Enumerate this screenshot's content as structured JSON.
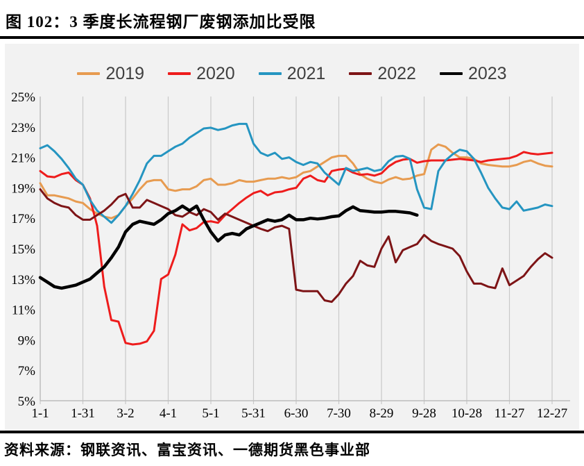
{
  "header": {
    "title": "图 102：3 季度长流程钢厂废钢添加比受限"
  },
  "footer": {
    "source": "资料来源：钢联资讯、富宝资讯、一德期货黑色事业部"
  },
  "panel": {
    "background": "#F2F2F2",
    "grid_color": "#C9C9C9",
    "axis_color": "#BDBDBD",
    "tick_label_color": "#000000",
    "legend_text_color": "#404040"
  },
  "chart_data": {
    "type": "line",
    "title": "",
    "xlabel": "",
    "ylabel": "",
    "legend_position": "top",
    "grid": "vertical-only",
    "ylim": [
      5,
      25
    ],
    "ytick_step": 2,
    "y_tick_labels": [
      "25%",
      "23%",
      "21%",
      "19%",
      "17%",
      "15%",
      "13%",
      "11%",
      "9%",
      "7%",
      "5%"
    ],
    "x_tick_labels": [
      "1-1",
      "1-31",
      "3-2",
      "4-1",
      "5-1",
      "5-31",
      "6-30",
      "7-30",
      "8-29",
      "9-28",
      "10-28",
      "11-27",
      "12-27"
    ],
    "x_interval_days": 5,
    "x_points_per_tick": 6,
    "series": [
      {
        "name": "2019",
        "color": "#E79B50",
        "width": 3,
        "values": [
          19.3,
          18.5,
          18.5,
          18.4,
          18.3,
          18.1,
          18.0,
          17.6,
          17.3,
          17.1,
          17.0,
          17.2,
          17.8,
          18.3,
          18.9,
          19.4,
          19.5,
          19.5,
          18.9,
          18.8,
          18.9,
          18.9,
          19.1,
          19.5,
          19.6,
          19.2,
          19.2,
          19.3,
          19.5,
          19.4,
          19.4,
          19.5,
          19.6,
          19.6,
          19.7,
          19.6,
          19.7,
          20.0,
          20.1,
          20.4,
          20.7,
          21.0,
          21.1,
          21.1,
          20.6,
          19.9,
          19.6,
          19.4,
          19.3,
          19.55,
          19.7,
          19.55,
          19.6,
          19.8,
          19.9,
          21.5,
          21.85,
          21.7,
          21.3,
          21.0,
          21.0,
          20.9,
          20.6,
          20.5,
          20.45,
          20.4,
          20.4,
          20.5,
          20.7,
          20.8,
          20.6,
          20.45,
          20.4
        ]
      },
      {
        "name": "2020",
        "color": "#EE1C1C",
        "width": 3,
        "values": [
          20.1,
          19.75,
          19.7,
          19.9,
          20.0,
          19.5,
          19.2,
          18.3,
          16.5,
          12.5,
          10.3,
          10.2,
          8.8,
          8.7,
          8.75,
          8.9,
          9.6,
          13.0,
          13.3,
          14.6,
          16.6,
          16.2,
          16.35,
          16.75,
          16.8,
          16.7,
          17.2,
          17.6,
          18.0,
          18.35,
          18.65,
          18.8,
          18.5,
          18.7,
          18.75,
          18.9,
          19.0,
          19.6,
          19.8,
          19.5,
          19.4,
          20.1,
          20.2,
          20.25,
          20.0,
          19.85,
          19.9,
          19.8,
          19.95,
          20.4,
          20.7,
          20.85,
          20.9,
          20.65,
          20.75,
          20.8,
          20.8,
          20.8,
          20.85,
          20.9,
          20.85,
          20.8,
          20.7,
          20.8,
          20.85,
          20.9,
          20.95,
          21.1,
          21.35,
          21.25,
          21.2,
          21.25,
          21.3
        ]
      },
      {
        "name": "2021",
        "color": "#2595C1",
        "width": 3,
        "values": [
          21.6,
          21.8,
          21.4,
          20.9,
          20.3,
          19.6,
          19.2,
          18.2,
          17.5,
          17.1,
          16.7,
          17.2,
          17.8,
          18.6,
          19.5,
          20.6,
          21.1,
          21.1,
          21.4,
          21.7,
          21.9,
          22.3,
          22.6,
          22.9,
          22.95,
          22.8,
          22.9,
          23.1,
          23.2,
          23.2,
          21.9,
          21.3,
          21.1,
          21.3,
          20.9,
          21.0,
          20.7,
          20.5,
          20.7,
          20.6,
          20.0,
          19.6,
          19.2,
          20.3,
          20.1,
          20.2,
          20.3,
          20.1,
          20.2,
          20.75,
          21.05,
          21.1,
          20.9,
          18.9,
          17.7,
          17.6,
          20.1,
          20.8,
          21.2,
          21.5,
          21.4,
          20.9,
          20.0,
          19.0,
          18.3,
          17.7,
          17.6,
          18.1,
          17.5,
          17.6,
          17.7,
          17.9,
          17.8
        ]
      },
      {
        "name": "2022",
        "color": "#7D1416",
        "width": 3,
        "values": [
          18.9,
          18.3,
          18.0,
          17.8,
          17.7,
          17.2,
          16.9,
          16.9,
          17.2,
          17.5,
          17.9,
          18.4,
          18.6,
          17.7,
          17.7,
          18.2,
          18.0,
          17.8,
          17.6,
          17.2,
          17.1,
          17.4,
          17.2,
          17.6,
          17.4,
          16.9,
          17.3,
          17.1,
          16.9,
          16.7,
          16.5,
          16.3,
          16.15,
          16.4,
          16.5,
          16.3,
          12.3,
          12.2,
          12.2,
          12.2,
          11.6,
          11.5,
          12.0,
          12.7,
          13.2,
          14.2,
          13.9,
          13.8,
          15.0,
          15.8,
          14.1,
          14.9,
          15.1,
          15.3,
          15.9,
          15.5,
          15.3,
          15.15,
          15.0,
          14.5,
          13.5,
          12.7,
          12.7,
          12.5,
          12.4,
          13.7,
          12.6,
          12.9,
          13.2,
          13.8,
          14.3,
          14.7,
          14.4
        ]
      },
      {
        "name": "2023",
        "color": "#000000",
        "width": 4.5,
        "values": [
          13.1,
          12.8,
          12.5,
          12.4,
          12.5,
          12.6,
          12.8,
          13.0,
          13.4,
          13.8,
          14.4,
          15.1,
          16.1,
          16.6,
          16.8,
          16.7,
          16.6,
          16.9,
          17.3,
          17.5,
          17.8,
          17.5,
          17.8,
          16.9,
          16.1,
          15.5,
          15.9,
          16.0,
          15.9,
          16.3,
          16.5,
          16.7,
          16.9,
          16.8,
          16.9,
          17.2,
          16.9,
          16.9,
          17.0,
          16.95,
          17.0,
          17.1,
          17.15,
          17.5,
          17.75,
          17.5,
          17.45,
          17.4,
          17.4,
          17.45,
          17.45,
          17.4,
          17.35,
          17.2
        ]
      }
    ]
  }
}
